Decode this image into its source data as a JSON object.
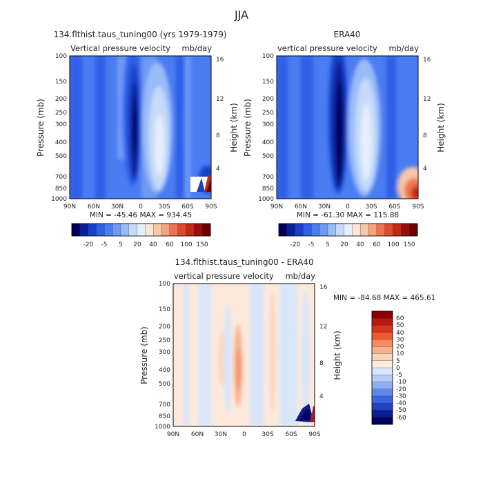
{
  "figure_title": "JJA",
  "chart_data": [
    {
      "type": "heatmap",
      "title": "134.flthist.taus_tuning00 (yrs 1979-1979)",
      "subtitle": "Vertical pressure velocity",
      "units": "mb/day",
      "ylabel": "Pressure (mb)",
      "ylabel_right": "Height (km)",
      "min_max": "MIN = -45.46   MAX = 934.45",
      "x_ticks": [
        "90N",
        "60N",
        "30N",
        "0",
        "30S",
        "60S",
        "90S"
      ],
      "y_ticks": [
        "100",
        "150",
        "200",
        "250",
        "300",
        "400",
        "500",
        "700",
        "850",
        "1000"
      ],
      "y_ticks_right": [
        "16",
        "12",
        "8",
        "4"
      ],
      "xlim": [
        90,
        -90
      ],
      "ylim": [
        1000,
        100
      ],
      "y_scale": "log",
      "colorbar_labels": [
        "-20",
        "-5",
        "5",
        "20",
        "40",
        "60",
        "100",
        "150"
      ],
      "colorbar_position": "bottom"
    },
    {
      "type": "heatmap",
      "title": "ERA40",
      "subtitle": "vertical pressure velocity",
      "units": "mb/day",
      "ylabel": "Pressure (mb)",
      "ylabel_right": "Height (km)",
      "min_max": "MIN = -61.30   MAX = 115.88",
      "x_ticks": [
        "90N",
        "60N",
        "30N",
        "0",
        "30S",
        "60S",
        "90S"
      ],
      "y_ticks": [
        "100",
        "150",
        "200",
        "250",
        "300",
        "400",
        "500",
        "700",
        "850",
        "1000"
      ],
      "y_ticks_right": [
        "16",
        "12",
        "8",
        "4"
      ],
      "xlim": [
        90,
        -90
      ],
      "ylim": [
        1000,
        100
      ],
      "y_scale": "log",
      "colorbar_labels": [
        "-20",
        "-5",
        "5",
        "20",
        "40",
        "60",
        "100",
        "150"
      ],
      "colorbar_position": "bottom"
    },
    {
      "type": "heatmap",
      "title": "134.flthist.taus_tuning00 - ERA40",
      "subtitle": "vertical pressure velocity",
      "units": "mb/day",
      "ylabel": "Pressure (mb)",
      "ylabel_right": "Height (km)",
      "min_max": "MIN = -84.68   MAX = 465.61",
      "x_ticks": [
        "90N",
        "60N",
        "30N",
        "0",
        "30S",
        "60S",
        "90S"
      ],
      "y_ticks": [
        "100",
        "150",
        "200",
        "250",
        "300",
        "400",
        "500",
        "700",
        "850",
        "1000"
      ],
      "y_ticks_right": [
        "16",
        "12",
        "8",
        "4"
      ],
      "xlim": [
        90,
        -90
      ],
      "ylim": [
        1000,
        100
      ],
      "y_scale": "log",
      "colorbar_labels": [
        "60",
        "50",
        "40",
        "30",
        "20",
        "10",
        "5",
        "0",
        "-5",
        "-10",
        "-20",
        "-30",
        "-40",
        "-50",
        "-60"
      ],
      "colorbar_position": "right"
    }
  ],
  "colors": {
    "scale_main": [
      "#00005a",
      "#0a1f99",
      "#1840c8",
      "#2f5fe6",
      "#4a7cf2",
      "#6e9af4",
      "#99bbf8",
      "#c6daf9",
      "#e6effb",
      "#fae6d6",
      "#f6c8aa",
      "#f2a27e",
      "#ec7450",
      "#dd4a2c",
      "#c02818",
      "#9a0e0a",
      "#6e0000"
    ],
    "scale_diff": [
      "#8a0000",
      "#b51a12",
      "#d8331f",
      "#ee5a32",
      "#f58a60",
      "#f7b08c",
      "#fbd4bb",
      "#fdece0",
      "#d8e6fa",
      "#b5ccf6",
      "#8eaef0",
      "#5f86ea",
      "#3d63df",
      "#2441c2",
      "#0b1c8f",
      "#000060"
    ],
    "diff_background": "#fde9dc"
  }
}
